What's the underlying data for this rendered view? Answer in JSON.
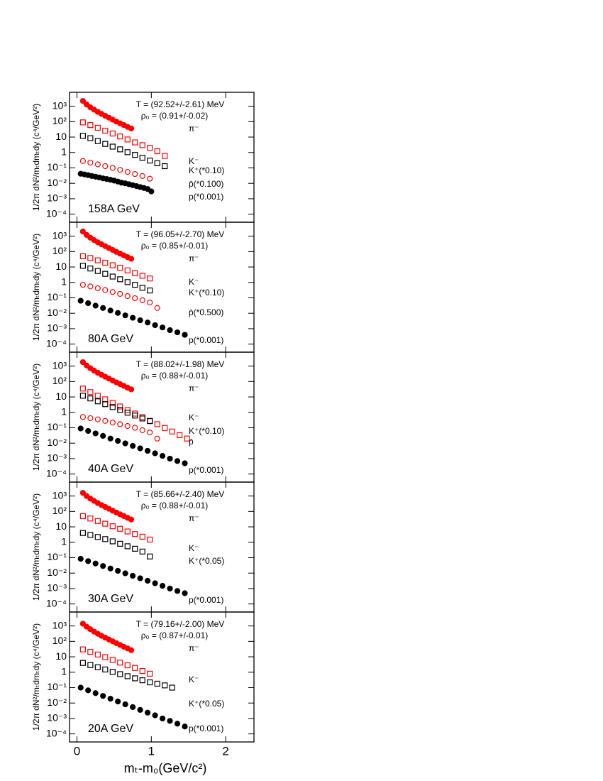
{
  "chart_data": [
    {
      "type": "scatter",
      "energy": "158A GeV",
      "temperature": "T = (92.52+/-2.61) MeV",
      "rho": "ρ₀ = (0.91+/-0.02)",
      "y_label": "1/2π dN²/mₜdmₜdy (c⁴/GeV²)",
      "xlim": [
        -0.1,
        2.38
      ],
      "xticks": [
        0,
        1,
        2
      ],
      "ylim": [
        3e-05,
        8000
      ],
      "log_y": true,
      "yticks": [
        {
          "value": 0.0001,
          "label": "10⁻⁴"
        },
        {
          "value": 0.001,
          "label": "10⁻³"
        },
        {
          "value": 0.01,
          "label": "10⁻²"
        },
        {
          "value": 0.1,
          "label": "10⁻¹"
        },
        1,
        10,
        {
          "value": 100,
          "label": "10²"
        },
        {
          "value": 1000,
          "label": "10³"
        }
      ],
      "series": [
        {
          "name": "π⁻",
          "color": "#ff0000",
          "marker": "filled-circle",
          "x": [
            0.08,
            0.13,
            0.18,
            0.23,
            0.28,
            0.33,
            0.38,
            0.43,
            0.48,
            0.53,
            0.58,
            0.63,
            0.68,
            0.73
          ],
          "values": [
            2200,
            1300,
            850,
            600,
            430,
            320,
            240,
            180,
            135,
            100,
            78,
            60,
            46,
            36
          ]
        },
        {
          "name": "K⁻",
          "color": "#ff0000",
          "marker": "open-square",
          "x": [
            0.08,
            0.18,
            0.28,
            0.38,
            0.48,
            0.58,
            0.68,
            0.78,
            0.88,
            0.98,
            1.08,
            1.18
          ],
          "values": [
            90,
            60,
            40,
            26,
            17,
            11,
            7,
            4.5,
            3,
            2,
            1.2,
            0.6
          ]
        },
        {
          "name": "K⁺(*0.10)",
          "color": "#000000",
          "marker": "open-square",
          "x": [
            0.08,
            0.18,
            0.28,
            0.38,
            0.48,
            0.58,
            0.68,
            0.78,
            0.88,
            0.98,
            1.08,
            1.18
          ],
          "values": [
            12,
            8.5,
            5.5,
            3.6,
            2.4,
            1.6,
            1.05,
            0.7,
            0.45,
            0.3,
            0.2,
            0.13
          ]
        },
        {
          "name": "p̄(*0.100)",
          "color": "#ff0000",
          "marker": "open-circle",
          "x": [
            0.08,
            0.18,
            0.28,
            0.38,
            0.48,
            0.58,
            0.68,
            0.78,
            0.88,
            0.98
          ],
          "values": [
            0.28,
            0.22,
            0.17,
            0.13,
            0.1,
            0.075,
            0.055,
            0.04,
            0.03,
            0.02
          ]
        },
        {
          "name": "p(*0.001)",
          "color": "#000000",
          "marker": "filled-circle",
          "x": [
            0.05,
            0.1,
            0.15,
            0.2,
            0.25,
            0.3,
            0.35,
            0.4,
            0.45,
            0.5,
            0.55,
            0.6,
            0.65,
            0.7,
            0.75,
            0.8,
            0.85,
            0.9,
            0.95,
            1.0
          ],
          "values": [
            0.042,
            0.038,
            0.034,
            0.03,
            0.027,
            0.024,
            0.021,
            0.019,
            0.017,
            0.015,
            0.013,
            0.011,
            0.01,
            0.0087,
            0.0076,
            0.0066,
            0.0057,
            0.005,
            0.0043,
            0.003
          ]
        }
      ]
    },
    {
      "type": "scatter",
      "energy": "80A GeV",
      "temperature": "T = (96.05+/-2.70) MeV",
      "rho": "ρ₀ = (0.85+/-0.01)",
      "y_label": "1/2π dN²/mₜdmₜdy (c⁴/GeV²)",
      "xlim": [
        -0.1,
        2.38
      ],
      "xticks": [
        0,
        1,
        2
      ],
      "ylim": [
        3e-05,
        8000
      ],
      "log_y": true,
      "yticks": [
        {
          "value": 0.0001,
          "label": "10⁻⁴"
        },
        {
          "value": 0.001,
          "label": "10⁻³"
        },
        {
          "value": 0.01,
          "label": "10⁻²"
        },
        {
          "value": 0.1,
          "label": "10⁻¹"
        },
        1,
        10,
        {
          "value": 100,
          "label": "10²"
        },
        {
          "value": 1000,
          "label": "10³"
        }
      ],
      "series": [
        {
          "name": "π⁻",
          "color": "#ff0000",
          "marker": "filled-circle",
          "x": [
            0.08,
            0.13,
            0.18,
            0.23,
            0.28,
            0.33,
            0.38,
            0.43,
            0.48,
            0.53,
            0.58,
            0.63,
            0.68,
            0.73
          ],
          "values": [
            2000,
            1200,
            800,
            560,
            400,
            300,
            225,
            170,
            128,
            96,
            74,
            57,
            44,
            34
          ]
        },
        {
          "name": "K⁻",
          "color": "#ff0000",
          "marker": "open-square",
          "x": [
            0.08,
            0.18,
            0.28,
            0.38,
            0.48,
            0.58,
            0.68,
            0.78,
            0.88,
            0.98
          ],
          "values": [
            50,
            38,
            27,
            19,
            13,
            9,
            6,
            4,
            2.7,
            1.8
          ]
        },
        {
          "name": "K⁺(*0.10)",
          "color": "#000000",
          "marker": "open-square",
          "x": [
            0.08,
            0.18,
            0.28,
            0.38,
            0.48,
            0.58,
            0.68,
            0.78,
            0.88,
            0.98
          ],
          "values": [
            12,
            8,
            5.5,
            3.6,
            2.4,
            1.6,
            1.05,
            0.7,
            0.45,
            0.3
          ]
        },
        {
          "name": "p̄(*0.500)",
          "color": "#ff0000",
          "marker": "open-circle",
          "x": [
            0.08,
            0.18,
            0.28,
            0.38,
            0.48,
            0.58,
            0.68,
            0.78,
            0.88,
            0.98,
            1.08
          ],
          "values": [
            0.7,
            0.55,
            0.42,
            0.32,
            0.24,
            0.18,
            0.13,
            0.095,
            0.07,
            0.05,
            0.022
          ]
        },
        {
          "name": "p(*0.001)",
          "color": "#000000",
          "marker": "filled-circle",
          "x": [
            0.05,
            0.15,
            0.25,
            0.35,
            0.45,
            0.55,
            0.65,
            0.75,
            0.85,
            0.95,
            1.05,
            1.15,
            1.25,
            1.35,
            1.45
          ],
          "values": [
            0.065,
            0.045,
            0.031,
            0.022,
            0.015,
            0.0105,
            0.0073,
            0.0051,
            0.0035,
            0.0025,
            0.0017,
            0.0012,
            0.0008,
            0.00058,
            0.0004
          ]
        }
      ]
    },
    {
      "type": "scatter",
      "energy": "40A GeV",
      "temperature": "T = (88.02+/-1.98) MeV",
      "rho": "ρ₀ = (0.88+/-0.01)",
      "y_label": "1/2π dN²/mₜdmₜdy (c⁴/GeV²)",
      "xlim": [
        -0.1,
        2.38
      ],
      "xticks": [
        0,
        1,
        2
      ],
      "ylim": [
        3e-05,
        8000
      ],
      "log_y": true,
      "yticks": [
        {
          "value": 0.0001,
          "label": "10⁻⁴"
        },
        {
          "value": 0.001,
          "label": "10⁻³"
        },
        {
          "value": 0.01,
          "label": "10⁻²"
        },
        {
          "value": 0.1,
          "label": "10⁻¹"
        },
        1,
        10,
        {
          "value": 100,
          "label": "10²"
        },
        {
          "value": 1000,
          "label": "10³"
        }
      ],
      "series": [
        {
          "name": "π⁻",
          "color": "#ff0000",
          "marker": "filled-circle",
          "x": [
            0.08,
            0.13,
            0.18,
            0.23,
            0.28,
            0.33,
            0.38,
            0.43,
            0.48,
            0.53,
            0.58,
            0.63,
            0.68,
            0.73
          ],
          "values": [
            1800,
            1100,
            730,
            510,
            370,
            275,
            205,
            155,
            117,
            88,
            68,
            52,
            40,
            31
          ]
        },
        {
          "name": "K⁻",
          "color": "#ff0000",
          "marker": "open-square",
          "x": [
            0.08,
            0.18,
            0.28,
            0.38,
            0.48,
            0.58,
            0.68,
            0.78,
            0.88,
            0.98,
            1.08,
            1.18,
            1.28,
            1.38,
            1.48
          ],
          "values": [
            35,
            20.5,
            12,
            7,
            4.1,
            2.4,
            1.4,
            0.83,
            0.49,
            0.28,
            0.17,
            0.097,
            0.057,
            0.033,
            0.02
          ]
        },
        {
          "name": "K⁺(*0.10)",
          "color": "#000000",
          "marker": "open-square",
          "x": [
            0.08,
            0.18,
            0.28,
            0.38,
            0.48,
            0.58,
            0.68,
            0.78,
            0.88,
            0.98
          ],
          "values": [
            12,
            8,
            5.2,
            3.4,
            2.2,
            1.45,
            0.95,
            0.62,
            0.4,
            0.27
          ]
        },
        {
          "name": "p̄",
          "color": "#ff0000",
          "marker": "open-circle",
          "x": [
            0.08,
            0.18,
            0.28,
            0.38,
            0.48,
            0.58,
            0.68,
            0.78,
            0.88,
            0.98,
            1.08
          ],
          "values": [
            0.5,
            0.42,
            0.35,
            0.28,
            0.22,
            0.17,
            0.13,
            0.1,
            0.07,
            0.05,
            0.02
          ]
        },
        {
          "name": "p(*0.001)",
          "color": "#000000",
          "marker": "filled-circle",
          "x": [
            0.05,
            0.15,
            0.25,
            0.35,
            0.45,
            0.55,
            0.65,
            0.75,
            0.85,
            0.95,
            1.05,
            1.15,
            1.25,
            1.35,
            1.45
          ],
          "values": [
            0.09,
            0.062,
            0.043,
            0.03,
            0.02,
            0.014,
            0.0097,
            0.0067,
            0.0046,
            0.0032,
            0.0022,
            0.0015,
            0.001,
            0.0007,
            0.0005
          ]
        }
      ]
    },
    {
      "type": "scatter",
      "energy": "30A GeV",
      "temperature": "T = (85.66+/-2.40) MeV",
      "rho": "ρ₀ = (0.88+/-0.01)",
      "y_label": "1/2π dN²/mₜdmₜdy (c⁴/GeV²)",
      "xlim": [
        -0.1,
        2.38
      ],
      "xticks": [
        0,
        1,
        2
      ],
      "ylim": [
        3e-05,
        8000
      ],
      "log_y": true,
      "yticks": [
        {
          "value": 0.0001,
          "label": "10⁻⁴"
        },
        {
          "value": 0.001,
          "label": "10⁻³"
        },
        {
          "value": 0.01,
          "label": "10⁻²"
        },
        {
          "value": 0.1,
          "label": "10⁻¹"
        },
        1,
        10,
        {
          "value": 100,
          "label": "10²"
        },
        {
          "value": 1000,
          "label": "10³"
        }
      ],
      "series": [
        {
          "name": "π⁻",
          "color": "#ff0000",
          "marker": "filled-circle",
          "x": [
            0.08,
            0.13,
            0.18,
            0.23,
            0.28,
            0.33,
            0.38,
            0.43,
            0.48,
            0.53,
            0.58,
            0.63,
            0.68,
            0.73
          ],
          "values": [
            1600,
            1000,
            680,
            480,
            350,
            260,
            195,
            148,
            112,
            85,
            65,
            50,
            39,
            30
          ]
        },
        {
          "name": "K⁻",
          "color": "#ff0000",
          "marker": "open-square",
          "x": [
            0.08,
            0.18,
            0.28,
            0.38,
            0.48,
            0.58,
            0.68,
            0.78,
            0.88,
            0.98
          ],
          "values": [
            50,
            35,
            24,
            16,
            11,
            7.5,
            5,
            3.4,
            2.3,
            1.5
          ]
        },
        {
          "name": "K⁺(*0.05)",
          "color": "#000000",
          "marker": "open-square",
          "x": [
            0.08,
            0.18,
            0.28,
            0.38,
            0.48,
            0.58,
            0.68,
            0.78,
            0.88,
            0.98
          ],
          "values": [
            4,
            3,
            2.2,
            1.6,
            1.15,
            0.8,
            0.55,
            0.38,
            0.25,
            0.12
          ]
        },
        {
          "name": "p(*0.001)",
          "color": "#000000",
          "marker": "filled-circle",
          "x": [
            0.05,
            0.15,
            0.25,
            0.35,
            0.45,
            0.55,
            0.65,
            0.75,
            0.85,
            0.95,
            1.05,
            1.15,
            1.25,
            1.35,
            1.45
          ],
          "values": [
            0.085,
            0.06,
            0.042,
            0.029,
            0.02,
            0.014,
            0.0097,
            0.0067,
            0.0046,
            0.0032,
            0.0022,
            0.0015,
            0.001,
            0.0007,
            0.0005
          ]
        }
      ]
    },
    {
      "type": "scatter",
      "energy": "20A GeV",
      "temperature": "T = (79.16+/-2.00) MeV",
      "rho": "ρ₀ = (0.87+/-0.01)",
      "y_label": "1/2π dN²/mₜdmₜdy (c⁴/GeV²)",
      "x_label": "mₜ-m₀(GeV/c²)",
      "xlim": [
        -0.1,
        2.38
      ],
      "xticks": [
        0,
        1,
        2
      ],
      "ylim": [
        3e-05,
        8000
      ],
      "log_y": true,
      "yticks": [
        {
          "value": 0.0001,
          "label": "10⁻⁴"
        },
        {
          "value": 0.001,
          "label": "10⁻³"
        },
        {
          "value": 0.01,
          "label": "10⁻²"
        },
        {
          "value": 0.1,
          "label": "10⁻¹"
        },
        1,
        10,
        {
          "value": 100,
          "label": "10²"
        },
        {
          "value": 1000,
          "label": "10³"
        }
      ],
      "series": [
        {
          "name": "π⁻",
          "color": "#ff0000",
          "marker": "filled-circle",
          "x": [
            0.08,
            0.13,
            0.18,
            0.23,
            0.28,
            0.33,
            0.38,
            0.43,
            0.48,
            0.53,
            0.58,
            0.63,
            0.68,
            0.73
          ],
          "values": [
            1400,
            900,
            610,
            430,
            310,
            230,
            175,
            133,
            101,
            77,
            59,
            45,
            35,
            27
          ]
        },
        {
          "name": "K⁻",
          "color": "#ff0000",
          "marker": "open-square",
          "x": [
            0.08,
            0.18,
            0.28,
            0.38,
            0.48,
            0.58,
            0.68,
            0.78,
            0.88,
            0.98
          ],
          "values": [
            30,
            21,
            14,
            9.5,
            6.3,
            4.2,
            2.8,
            1.9,
            1.2,
            0.8
          ]
        },
        {
          "name": "K⁺(*0.05)",
          "color": "#000000",
          "marker": "open-square",
          "x": [
            0.08,
            0.18,
            0.28,
            0.38,
            0.48,
            0.58,
            0.68,
            0.78,
            0.88,
            0.98,
            1.08,
            1.18,
            1.28
          ],
          "values": [
            4,
            2.9,
            2.1,
            1.5,
            1.05,
            0.75,
            0.55,
            0.4,
            0.3,
            0.22,
            0.18,
            0.14,
            0.1
          ]
        },
        {
          "name": "p(*0.001)",
          "color": "#000000",
          "marker": "filled-circle",
          "x": [
            0.05,
            0.15,
            0.25,
            0.35,
            0.45,
            0.55,
            0.65,
            0.75,
            0.85,
            0.95,
            1.05,
            1.15,
            1.25,
            1.35,
            1.45
          ],
          "values": [
            0.1,
            0.066,
            0.044,
            0.029,
            0.019,
            0.0126,
            0.0083,
            0.0055,
            0.0036,
            0.0024,
            0.0016,
            0.001,
            0.0007,
            0.00046,
            0.0003
          ]
        }
      ]
    }
  ]
}
